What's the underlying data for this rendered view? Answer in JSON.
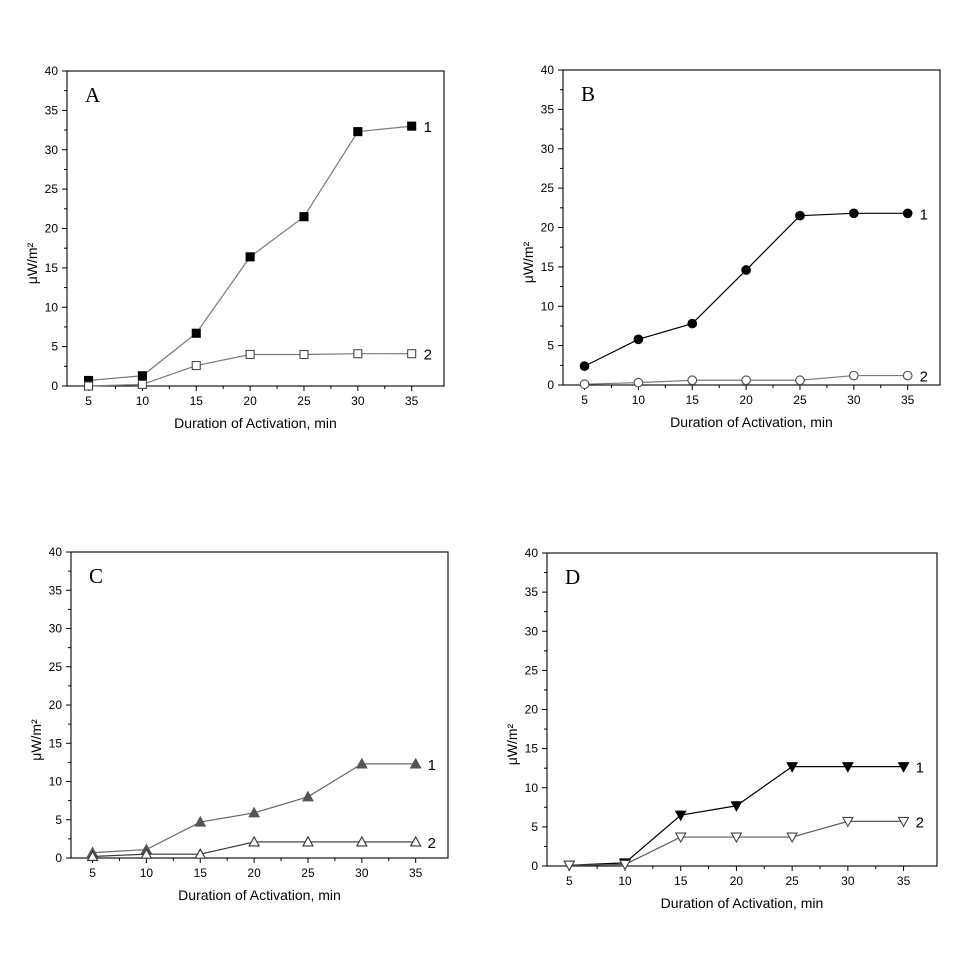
{
  "chart_data": [
    {
      "type": "line",
      "panel_label": "A",
      "xlabel": "Duration of Activation, min",
      "ylabel": "μW/m²",
      "x": [
        5,
        10,
        15,
        20,
        25,
        30,
        35
      ],
      "xticks": [
        5,
        10,
        15,
        20,
        25,
        30,
        35
      ],
      "yticks": [
        0,
        5,
        10,
        15,
        20,
        25,
        30,
        35,
        40
      ],
      "xlim": [
        3,
        38
      ],
      "ylim": [
        0,
        40
      ],
      "series": [
        {
          "name": "1",
          "marker": "square-filled",
          "color": "#000000",
          "line_color": "#7a7a7a",
          "values": [
            0.7,
            1.3,
            6.7,
            16.4,
            21.5,
            32.3,
            33.0
          ]
        },
        {
          "name": "2",
          "marker": "square-open",
          "color": "#4a4a4a",
          "line_color": "#7a7a7a",
          "values": [
            0.0,
            0.2,
            2.6,
            4.0,
            4.0,
            4.1,
            4.1
          ]
        }
      ]
    },
    {
      "type": "line",
      "panel_label": "B",
      "xlabel": "Duration of Activation, min",
      "ylabel": "μW/m²",
      "x": [
        5,
        10,
        15,
        20,
        25,
        30,
        35
      ],
      "xticks": [
        5,
        10,
        15,
        20,
        25,
        30,
        35
      ],
      "yticks": [
        0,
        5,
        10,
        15,
        20,
        25,
        30,
        35,
        40
      ],
      "xlim": [
        3,
        38
      ],
      "ylim": [
        0,
        40
      ],
      "series": [
        {
          "name": "1",
          "marker": "circle-filled",
          "color": "#000000",
          "line_color": "#000000",
          "values": [
            2.4,
            5.8,
            7.8,
            14.6,
            21.5,
            21.8,
            21.8
          ]
        },
        {
          "name": "2",
          "marker": "circle-open",
          "color": "#4a4a4a",
          "line_color": "#7a7a7a",
          "values": [
            0.1,
            0.3,
            0.6,
            0.6,
            0.6,
            1.2,
            1.2
          ]
        }
      ]
    },
    {
      "type": "line",
      "panel_label": "C",
      "xlabel": "Duration of Activation, min",
      "ylabel": "μW/m²",
      "x": [
        5,
        10,
        15,
        20,
        25,
        30,
        35
      ],
      "xticks": [
        5,
        10,
        15,
        20,
        25,
        30,
        35
      ],
      "yticks": [
        0,
        5,
        10,
        15,
        20,
        25,
        30,
        35,
        40
      ],
      "xlim": [
        3,
        38
      ],
      "ylim": [
        0,
        40
      ],
      "series": [
        {
          "name": "1",
          "marker": "triangle-up-filled",
          "color": "#555555",
          "line_color": "#6a6a6a",
          "values": [
            0.7,
            1.1,
            4.7,
            5.9,
            8.0,
            12.3,
            12.3
          ]
        },
        {
          "name": "2",
          "marker": "triangle-up-open",
          "color": "#333333",
          "line_color": "#333333",
          "values": [
            0.2,
            0.5,
            0.5,
            2.1,
            2.1,
            2.1,
            2.1
          ]
        }
      ]
    },
    {
      "type": "line",
      "panel_label": "D",
      "xlabel": "Duration of Activation, min",
      "ylabel": "μW/m²",
      "x": [
        5,
        10,
        15,
        20,
        25,
        30,
        35
      ],
      "xticks": [
        5,
        10,
        15,
        20,
        25,
        30,
        35
      ],
      "yticks": [
        0,
        5,
        10,
        15,
        20,
        25,
        30,
        35,
        40
      ],
      "xlim": [
        3,
        38
      ],
      "ylim": [
        0,
        40
      ],
      "series": [
        {
          "name": "1",
          "marker": "triangle-down-filled",
          "color": "#000000",
          "line_color": "#000000",
          "values": [
            0.1,
            0.4,
            6.5,
            7.7,
            12.7,
            12.7,
            12.7
          ]
        },
        {
          "name": "2",
          "marker": "triangle-down-open",
          "color": "#444444",
          "line_color": "#5a5a5a",
          "values": [
            0.1,
            0.2,
            3.7,
            3.7,
            3.7,
            5.7,
            5.7
          ]
        }
      ]
    }
  ]
}
